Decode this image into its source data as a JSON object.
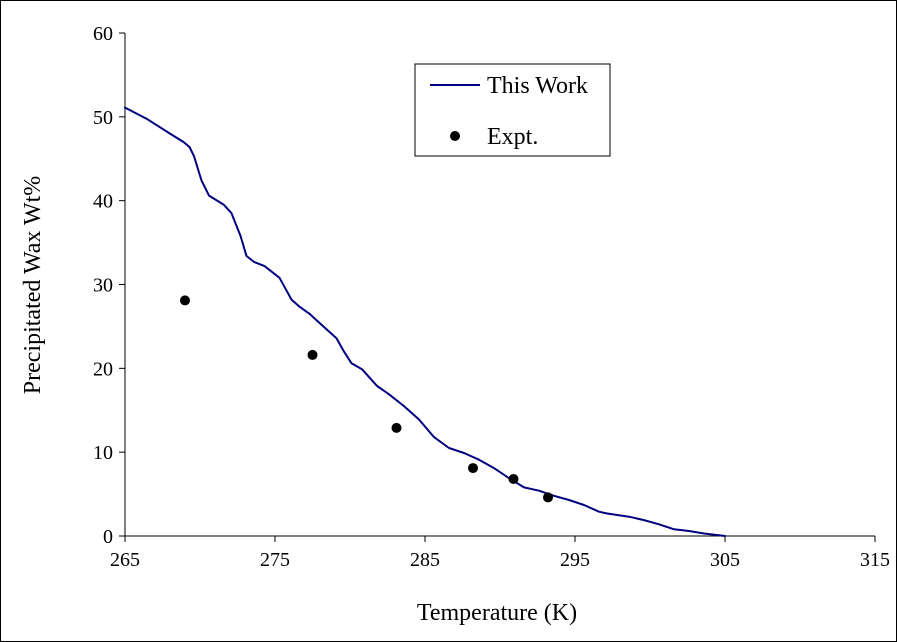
{
  "chart_data": {
    "type": "line",
    "xlabel": "Temperature (K)",
    "ylabel": "Precipitated Wax Wt%",
    "xlim": [
      265,
      315
    ],
    "ylim": [
      0,
      60
    ],
    "xticks": [
      "265",
      "275",
      "285",
      "295",
      "305",
      "315"
    ],
    "yticks": [
      "0",
      "10",
      "20",
      "30",
      "40",
      "50",
      "60"
    ],
    "grid": false,
    "legend_position": "top-center",
    "series": [
      {
        "name": "This Work",
        "style": "line",
        "color": "#000080",
        "x": [
          265,
          266.5,
          268,
          268.9,
          269.3,
          269.6,
          270.1,
          270.6,
          271.6,
          272.1,
          272.7,
          273.1,
          273.6,
          274.3,
          275.3,
          276.1,
          276.6,
          277.3,
          278.1,
          279.1,
          279.6,
          280.1,
          280.8,
          281.3,
          281.8,
          282.6,
          283.6,
          284.6,
          285.6,
          286.6,
          287.6,
          288.6,
          289.6,
          290.6,
          291.6,
          292.6,
          293.6,
          294.6,
          295.6,
          296.6,
          297.1,
          298.6,
          299.6,
          300.6,
          301.6,
          302.6,
          303.6,
          304.6,
          305
        ],
        "y": [
          51.1,
          49.7,
          48.0,
          47.0,
          46.4,
          45.3,
          42.4,
          40.6,
          39.5,
          38.5,
          35.8,
          33.4,
          32.7,
          32.2,
          30.8,
          28.2,
          27.4,
          26.5,
          25.2,
          23.6,
          22.0,
          20.6,
          19.9,
          18.9,
          17.9,
          16.9,
          15.5,
          13.9,
          11.8,
          10.5,
          9.9,
          9.1,
          8.1,
          6.9,
          5.8,
          5.4,
          4.8,
          4.3,
          3.7,
          2.9,
          2.7,
          2.3,
          1.9,
          1.4,
          0.8,
          0.6,
          0.3,
          0.1,
          0
        ]
      },
      {
        "name": "Expt.",
        "style": "marker",
        "color": "#000000",
        "x": [
          269,
          277.5,
          283.1,
          288.2,
          290.9,
          293.2
        ],
        "y": [
          28.1,
          21.6,
          12.9,
          8.1,
          6.8,
          4.6
        ]
      }
    ]
  }
}
